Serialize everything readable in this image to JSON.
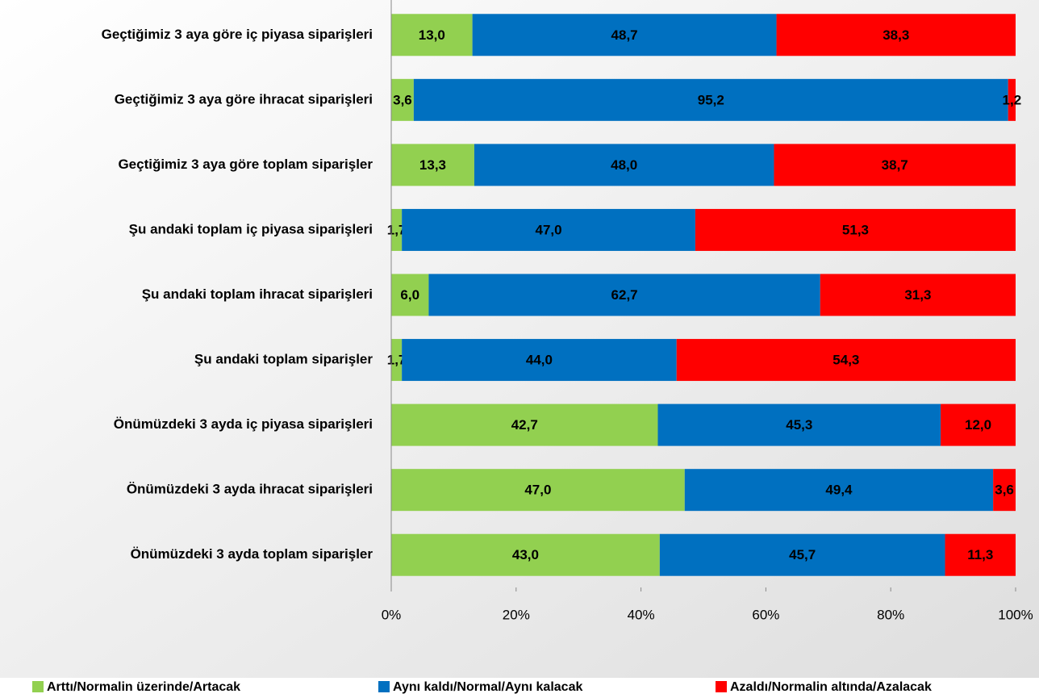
{
  "chart_data": {
    "type": "stacked_barh",
    "categories": [
      "Geçtiğimiz 3 aya göre iç piyasa siparişleri",
      "Geçtiğimiz 3 aya göre ihracat siparişleri",
      "Geçtiğimiz 3 aya göre toplam siparişler",
      "Şu andaki toplam iç piyasa siparişleri",
      "Şu andaki toplam ihracat siparişleri",
      "Şu andaki toplam siparişler",
      "Önümüzdeki 3 ayda iç piyasa siparişleri",
      "Önümüzdeki 3 ayda ihracat siparişleri",
      "Önümüzdeki 3 ayda toplam siparişler"
    ],
    "series": [
      {
        "name": "Arttı/Normalin üzerinde/Artacak",
        "color": "#92d050",
        "values": [
          13.0,
          3.6,
          13.3,
          1.7,
          6.0,
          1.7,
          42.7,
          47.0,
          43.0
        ],
        "value_labels": [
          "13,0",
          "3,6",
          "13,3",
          "1,7",
          "6,0",
          "1,7",
          "42,7",
          "47,0",
          "43,0"
        ]
      },
      {
        "name": "Aynı kaldı/Normal/Aynı kalacak",
        "color": "#0070c0",
        "values": [
          48.7,
          95.2,
          48.0,
          47.0,
          62.7,
          44.0,
          45.3,
          49.4,
          45.7
        ],
        "value_labels": [
          "48,7",
          "95,2",
          "48,0",
          "47,0",
          "62,7",
          "44,0",
          "45,3",
          "49,4",
          "45,7"
        ]
      },
      {
        "name": "Azaldı/Normalin altında/Azalacak",
        "color": "#ff0000",
        "values": [
          38.3,
          1.2,
          38.7,
          51.3,
          31.3,
          54.3,
          12.0,
          3.6,
          11.3
        ],
        "value_labels": [
          "38,3",
          "1,2",
          "38,7",
          "51,3",
          "31,3",
          "54,3",
          "12,0",
          "3,6",
          "11,3"
        ]
      }
    ],
    "xlim": [
      0,
      100
    ],
    "xticks": [
      {
        "value": 0,
        "label": "0%"
      },
      {
        "value": 20,
        "label": "20%"
      },
      {
        "value": 40,
        "label": "40%"
      },
      {
        "value": 60,
        "label": "60%"
      },
      {
        "value": 80,
        "label": "80%"
      },
      {
        "value": 100,
        "label": "100%"
      }
    ],
    "grid": false,
    "legend": "bottom"
  }
}
